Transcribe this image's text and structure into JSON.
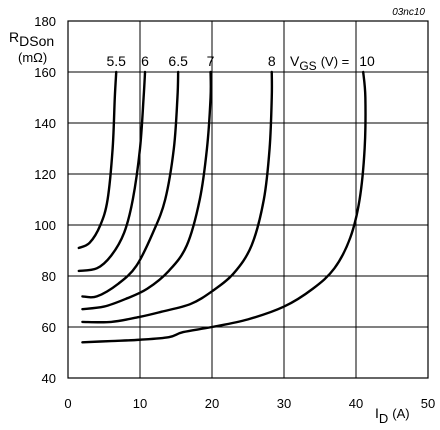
{
  "chart_data": {
    "type": "line",
    "figure_id": "03nc10",
    "ylabel_main": "R",
    "ylabel_sub": "DSon",
    "ylabel_unit": "(mΩ)",
    "xlabel_main": "I",
    "xlabel_sub": "D",
    "xlabel_unit": "(A)",
    "vgs_label_main": "V",
    "vgs_label_sub": "GS",
    "vgs_label_rest": "(V) =",
    "xlim": [
      0,
      50
    ],
    "ylim": [
      40,
      180
    ],
    "xticks": [
      0,
      10,
      20,
      30,
      40,
      50
    ],
    "yticks": [
      40,
      60,
      80,
      100,
      120,
      140,
      160,
      180
    ],
    "grid": true,
    "series": [
      {
        "name": "5.5",
        "points": [
          [
            1.5,
            91
          ],
          [
            3,
            93
          ],
          [
            4.5,
            100
          ],
          [
            5.5,
            110
          ],
          [
            6.2,
            130
          ],
          [
            6.5,
            150
          ],
          [
            6.7,
            160
          ]
        ]
      },
      {
        "name": "6",
        "points": [
          [
            1.5,
            82
          ],
          [
            4,
            83
          ],
          [
            6,
            88
          ],
          [
            7.8,
            97
          ],
          [
            9,
            110
          ],
          [
            10,
            130
          ],
          [
            10.5,
            150
          ],
          [
            10.7,
            160
          ]
        ]
      },
      {
        "name": "6.5",
        "points": [
          [
            2,
            72
          ],
          [
            4,
            72
          ],
          [
            7,
            77
          ],
          [
            9.5,
            84
          ],
          [
            11.8,
            97
          ],
          [
            13.5,
            110
          ],
          [
            14.7,
            130
          ],
          [
            15.2,
            150
          ],
          [
            15.3,
            160
          ]
        ]
      },
      {
        "name": "7",
        "points": [
          [
            2,
            67
          ],
          [
            5,
            68
          ],
          [
            8,
            71
          ],
          [
            11,
            75
          ],
          [
            14,
            82
          ],
          [
            16.5,
            92
          ],
          [
            18.3,
            110
          ],
          [
            19.3,
            130
          ],
          [
            19.8,
            150
          ],
          [
            19.8,
            160
          ]
        ]
      },
      {
        "name": "8",
        "points": [
          [
            2,
            62
          ],
          [
            6,
            62
          ],
          [
            10,
            64
          ],
          [
            13,
            66
          ],
          [
            17,
            69
          ],
          [
            20,
            74
          ],
          [
            23,
            81
          ],
          [
            25.5,
            92
          ],
          [
            27.2,
            110
          ],
          [
            28,
            130
          ],
          [
            28.3,
            150
          ],
          [
            28.3,
            160
          ]
        ]
      },
      {
        "name": "10",
        "points": [
          [
            2,
            54
          ],
          [
            6,
            54.5
          ],
          [
            10,
            55
          ],
          [
            14,
            56
          ],
          [
            16,
            58
          ],
          [
            20,
            60
          ],
          [
            25,
            63
          ],
          [
            30,
            68
          ],
          [
            34,
            75
          ],
          [
            37,
            83
          ],
          [
            39.2,
            95
          ],
          [
            40.5,
            110
          ],
          [
            41.2,
            130
          ],
          [
            41.3,
            150
          ],
          [
            41,
            160
          ]
        ]
      }
    ]
  }
}
